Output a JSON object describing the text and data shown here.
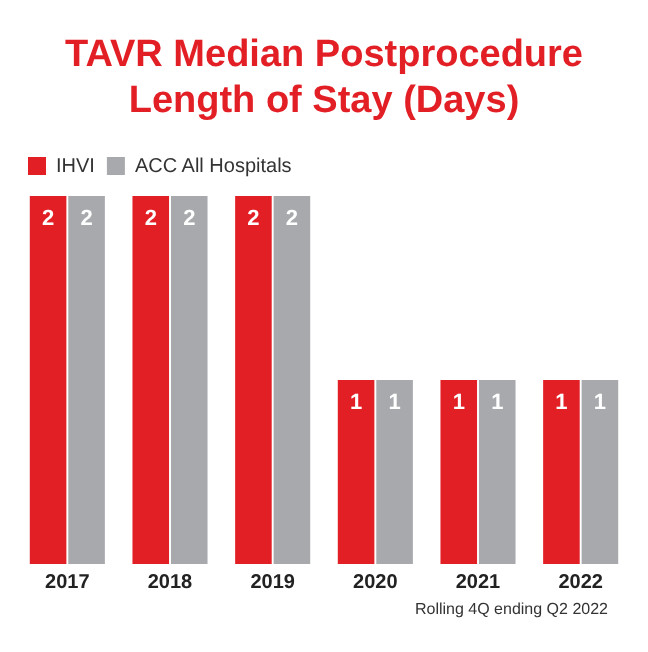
{
  "chart_data": {
    "type": "bar",
    "title": "TAVR Median Postprocedure Length of Stay (Days)",
    "categories": [
      "2017",
      "2018",
      "2019",
      "2020",
      "2021",
      "2022"
    ],
    "series": [
      {
        "name": "IHVI",
        "color": "#e31f26",
        "values": [
          2,
          2,
          2,
          1,
          1,
          1
        ]
      },
      {
        "name": "ACC All Hospitals",
        "color": "#a7a9ac",
        "values": [
          2,
          2,
          2,
          1,
          1,
          1
        ]
      }
    ],
    "data_labels": true,
    "legend": "top left",
    "grid": false,
    "annotations": [
      "Rolling 4Q ending Q2 2022"
    ]
  }
}
